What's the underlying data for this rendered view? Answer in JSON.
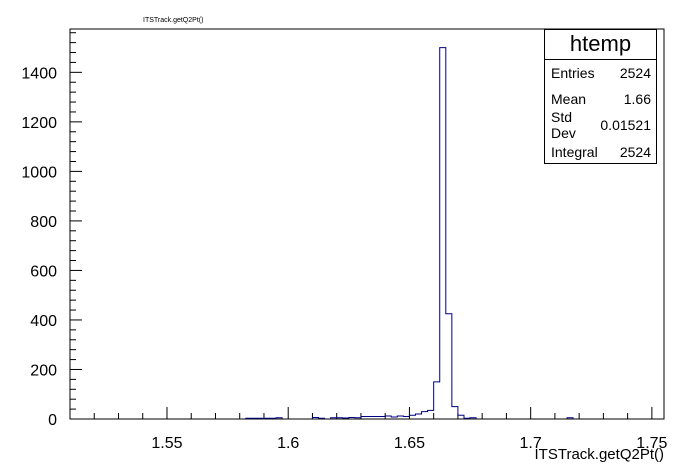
{
  "histogram_title": "ITSTrack.getQ2Pt()",
  "stats_box": {
    "name": "htemp",
    "rows": [
      {
        "label": "Entries",
        "value": "2524"
      },
      {
        "label": "Mean",
        "value": "1.66"
      },
      {
        "label": "Std Dev",
        "value": "0.01521"
      },
      {
        "label": "Integral",
        "value": "2524"
      }
    ]
  },
  "colors": {
    "histogram_line": "#000080",
    "axis": "#000000",
    "background": "#ffffff"
  },
  "chart_data": {
    "type": "histogram",
    "title": "ITSTrack.getQ2Pt()",
    "xlabel": "ITSTrack.getQ2Pt()",
    "ylabel": "",
    "xlim": [
      1.51,
      1.755
    ],
    "ylim": [
      0,
      1575
    ],
    "x_ticks": [
      "1.55",
      "1.6",
      "1.65",
      "1.7",
      "1.75"
    ],
    "y_ticks": [
      "0",
      "200",
      "400",
      "600",
      "800",
      "1000",
      "1200",
      "1400"
    ],
    "bin_width": 0.0025,
    "bins": [
      {
        "x0": 1.5825,
        "y": 3
      },
      {
        "x0": 1.585,
        "y": 3
      },
      {
        "x0": 1.5875,
        "y": 3
      },
      {
        "x0": 1.59,
        "y": 3
      },
      {
        "x0": 1.5925,
        "y": 3
      },
      {
        "x0": 1.595,
        "y": 5
      },
      {
        "x0": 1.61,
        "y": 6
      },
      {
        "x0": 1.6125,
        "y": 3
      },
      {
        "x0": 1.6175,
        "y": 5
      },
      {
        "x0": 1.62,
        "y": 5
      },
      {
        "x0": 1.6225,
        "y": 4
      },
      {
        "x0": 1.625,
        "y": 6
      },
      {
        "x0": 1.6275,
        "y": 5
      },
      {
        "x0": 1.63,
        "y": 10
      },
      {
        "x0": 1.6325,
        "y": 10
      },
      {
        "x0": 1.635,
        "y": 10
      },
      {
        "x0": 1.6375,
        "y": 10
      },
      {
        "x0": 1.64,
        "y": 12
      },
      {
        "x0": 1.6425,
        "y": 8
      },
      {
        "x0": 1.645,
        "y": 12
      },
      {
        "x0": 1.6475,
        "y": 10
      },
      {
        "x0": 1.65,
        "y": 15
      },
      {
        "x0": 1.6525,
        "y": 20
      },
      {
        "x0": 1.655,
        "y": 30
      },
      {
        "x0": 1.6575,
        "y": 35
      },
      {
        "x0": 1.66,
        "y": 150
      },
      {
        "x0": 1.6625,
        "y": 1500
      },
      {
        "x0": 1.665,
        "y": 425
      },
      {
        "x0": 1.6675,
        "y": 50
      },
      {
        "x0": 1.67,
        "y": 15
      },
      {
        "x0": 1.6725,
        "y": 3
      },
      {
        "x0": 1.675,
        "y": 5
      },
      {
        "x0": 1.715,
        "y": 5
      }
    ]
  }
}
